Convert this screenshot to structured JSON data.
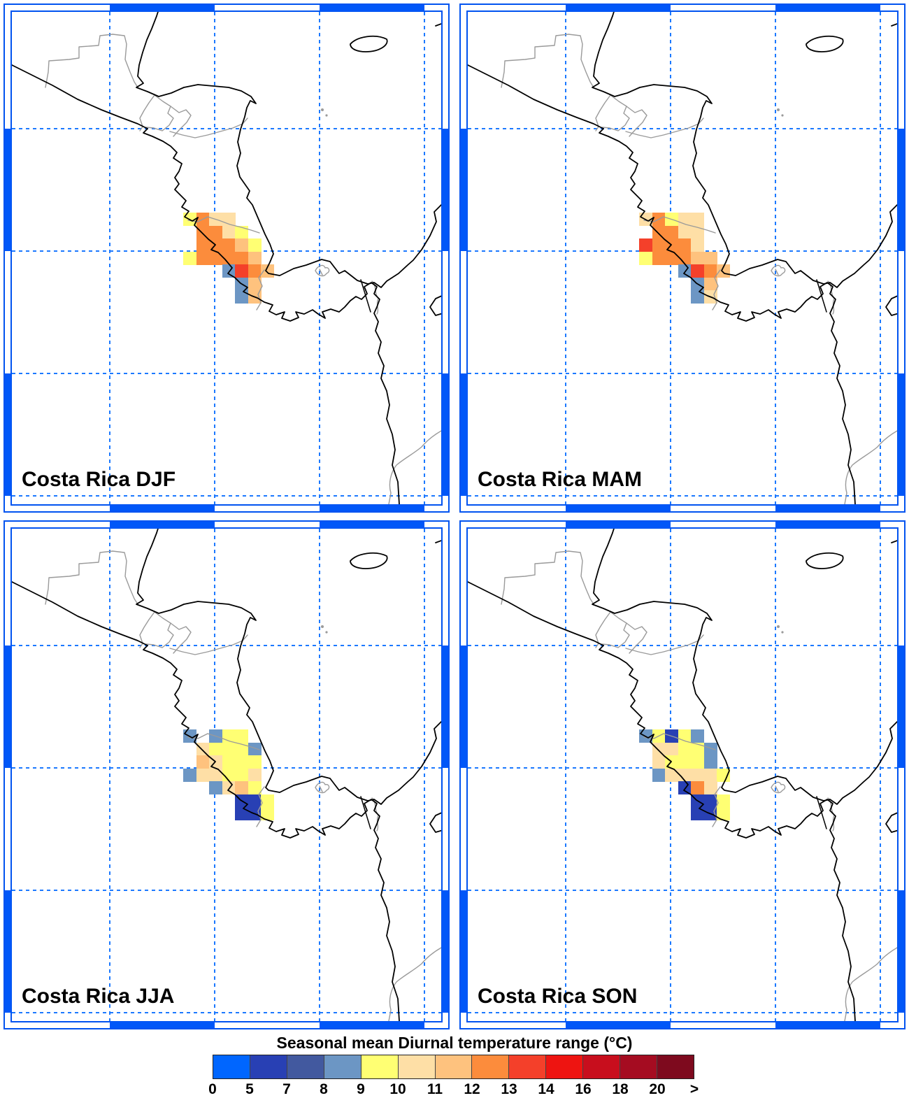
{
  "palette": {
    "0-5": "#0066FF",
    "5-7": "#2840B4",
    "7-8": "#42599F",
    "8-9": "#6C96C4",
    "9-10": "#FFFF73",
    "10-11": "#FEDFA6",
    "11-12": "#FEC27E",
    "12-13": "#FC8C3C",
    "13-14": "#F4402A",
    "14-16": "#EE1411",
    "16-18": "#C80E1D",
    "18-20": "#A50C21",
    ">20": "#7E0A1E"
  },
  "frame_color": "#0157F8",
  "gridline_color": "#1C79FF",
  "panels": [
    {
      "id": "djf",
      "title": "Costa Rica DJF",
      "cells": [
        [
          0,
          0,
          "9-10"
        ],
        [
          1,
          0,
          "12-13"
        ],
        [
          2,
          0,
          "10-11"
        ],
        [
          3,
          0,
          "10-11"
        ],
        [
          1,
          1,
          "12-13"
        ],
        [
          2,
          1,
          "12-13"
        ],
        [
          3,
          1,
          "10-11"
        ],
        [
          4,
          1,
          "9-10"
        ],
        [
          1,
          2,
          "12-13"
        ],
        [
          2,
          2,
          "12-13"
        ],
        [
          3,
          2,
          "12-13"
        ],
        [
          4,
          2,
          "11-12"
        ],
        [
          5,
          2,
          "9-10"
        ],
        [
          0,
          3,
          "9-10"
        ],
        [
          1,
          3,
          "12-13"
        ],
        [
          2,
          3,
          "12-13"
        ],
        [
          3,
          3,
          "12-13"
        ],
        [
          4,
          3,
          "12-13"
        ],
        [
          5,
          3,
          "11-12"
        ],
        [
          3,
          4,
          "8-9"
        ],
        [
          4,
          4,
          "13-14"
        ],
        [
          5,
          4,
          "12-13"
        ],
        [
          6,
          4,
          "11-12"
        ],
        [
          4,
          5,
          "8-9"
        ],
        [
          5,
          5,
          "11-12"
        ],
        [
          4,
          6,
          "8-9"
        ],
        [
          5,
          6,
          "11-12"
        ]
      ]
    },
    {
      "id": "mam",
      "title": "Costa Rica MAM",
      "cells": [
        [
          0,
          0,
          "10-11"
        ],
        [
          1,
          0,
          "12-13"
        ],
        [
          2,
          0,
          "9-10"
        ],
        [
          3,
          0,
          "10-11"
        ],
        [
          4,
          0,
          "10-11"
        ],
        [
          1,
          1,
          "12-13"
        ],
        [
          2,
          1,
          "12-13"
        ],
        [
          3,
          1,
          "10-11"
        ],
        [
          4,
          1,
          "10-11"
        ],
        [
          0,
          2,
          "13-14"
        ],
        [
          1,
          2,
          "12-13"
        ],
        [
          2,
          2,
          "12-13"
        ],
        [
          3,
          2,
          "12-13"
        ],
        [
          4,
          2,
          "10-11"
        ],
        [
          0,
          3,
          "9-10"
        ],
        [
          1,
          3,
          "12-13"
        ],
        [
          2,
          3,
          "12-13"
        ],
        [
          3,
          3,
          "12-13"
        ],
        [
          4,
          3,
          "11-12"
        ],
        [
          5,
          3,
          "11-12"
        ],
        [
          3,
          4,
          "8-9"
        ],
        [
          4,
          4,
          "13-14"
        ],
        [
          5,
          4,
          "12-13"
        ],
        [
          6,
          4,
          "11-12"
        ],
        [
          4,
          5,
          "8-9"
        ],
        [
          5,
          5,
          "11-12"
        ],
        [
          4,
          6,
          "8-9"
        ],
        [
          5,
          6,
          "10-11"
        ]
      ]
    },
    {
      "id": "jja",
      "title": "Costa Rica JJA",
      "cells": [
        [
          0,
          0,
          "8-9"
        ],
        [
          2,
          0,
          "8-9"
        ],
        [
          3,
          0,
          "9-10"
        ],
        [
          4,
          0,
          "9-10"
        ],
        [
          1,
          1,
          "10-11"
        ],
        [
          2,
          1,
          "9-10"
        ],
        [
          3,
          1,
          "9-10"
        ],
        [
          4,
          1,
          "9-10"
        ],
        [
          5,
          1,
          "8-9"
        ],
        [
          1,
          2,
          "11-12"
        ],
        [
          2,
          2,
          "10-11"
        ],
        [
          3,
          2,
          "9-10"
        ],
        [
          4,
          2,
          "9-10"
        ],
        [
          5,
          2,
          "9-10"
        ],
        [
          0,
          3,
          "8-9"
        ],
        [
          1,
          3,
          "10-11"
        ],
        [
          2,
          3,
          "10-11"
        ],
        [
          3,
          3,
          "9-10"
        ],
        [
          4,
          3,
          "9-10"
        ],
        [
          5,
          3,
          "10-11"
        ],
        [
          2,
          4,
          "8-9"
        ],
        [
          3,
          4,
          "10-11"
        ],
        [
          4,
          4,
          "11-12"
        ],
        [
          5,
          4,
          "9-10"
        ],
        [
          4,
          5,
          "5-7"
        ],
        [
          5,
          5,
          "5-7"
        ],
        [
          6,
          5,
          "9-10"
        ],
        [
          4,
          6,
          "5-7"
        ],
        [
          5,
          6,
          "5-7"
        ],
        [
          6,
          6,
          "9-10"
        ]
      ]
    },
    {
      "id": "son",
      "title": "Costa Rica SON",
      "cells": [
        [
          0,
          0,
          "8-9"
        ],
        [
          1,
          0,
          "9-10"
        ],
        [
          2,
          0,
          "5-7"
        ],
        [
          3,
          0,
          "9-10"
        ],
        [
          4,
          0,
          "8-9"
        ],
        [
          1,
          1,
          "10-11"
        ],
        [
          2,
          1,
          "10-11"
        ],
        [
          3,
          1,
          "9-10"
        ],
        [
          4,
          1,
          "9-10"
        ],
        [
          5,
          1,
          "8-9"
        ],
        [
          1,
          2,
          "10-11"
        ],
        [
          2,
          2,
          "9-10"
        ],
        [
          3,
          2,
          "9-10"
        ],
        [
          4,
          2,
          "9-10"
        ],
        [
          5,
          2,
          "8-9"
        ],
        [
          1,
          3,
          "8-9"
        ],
        [
          2,
          3,
          "10-11"
        ],
        [
          3,
          3,
          "10-11"
        ],
        [
          4,
          3,
          "10-11"
        ],
        [
          5,
          3,
          "10-11"
        ],
        [
          6,
          3,
          "9-10"
        ],
        [
          3,
          4,
          "5-7"
        ],
        [
          4,
          4,
          "12-13"
        ],
        [
          5,
          4,
          "10-11"
        ],
        [
          4,
          5,
          "5-7"
        ],
        [
          5,
          5,
          "5-7"
        ],
        [
          6,
          5,
          "9-10"
        ],
        [
          4,
          6,
          "5-7"
        ],
        [
          5,
          6,
          "5-7"
        ],
        [
          6,
          6,
          "9-10"
        ]
      ]
    }
  ],
  "colorbar": {
    "title": "Seasonal mean Diurnal temperature range (°C)",
    "bins": [
      "0-5",
      "5-7",
      "7-8",
      "8-9",
      "9-10",
      "10-11",
      "11-12",
      "12-13",
      "13-14",
      "14-16",
      "16-18",
      "18-20",
      ">20"
    ],
    "tick_labels": [
      "0",
      "5",
      "7",
      "8",
      "9",
      "10",
      "11",
      "12",
      "13",
      "14",
      "16",
      "18",
      "20",
      ">"
    ]
  },
  "chart_data": {
    "type": "heatmap",
    "title": "Seasonal mean Diurnal temperature range (°C)",
    "units": "°C",
    "panel_titles": [
      "Costa Rica DJF",
      "Costa Rica MAM",
      "Costa Rica JJA",
      "Costa Rica SON"
    ],
    "colorbar_bounds": [
      0,
      5,
      7,
      8,
      9,
      10,
      11,
      12,
      13,
      14,
      16,
      18,
      20
    ],
    "colorbar_open_ended_right": true,
    "legend_position": "bottom",
    "note": "Each panel maps gridded diurnal temperature range values over Costa Rica; cell values per panel are given in panels[].cells as [column,row,temperature-bin °C]"
  }
}
